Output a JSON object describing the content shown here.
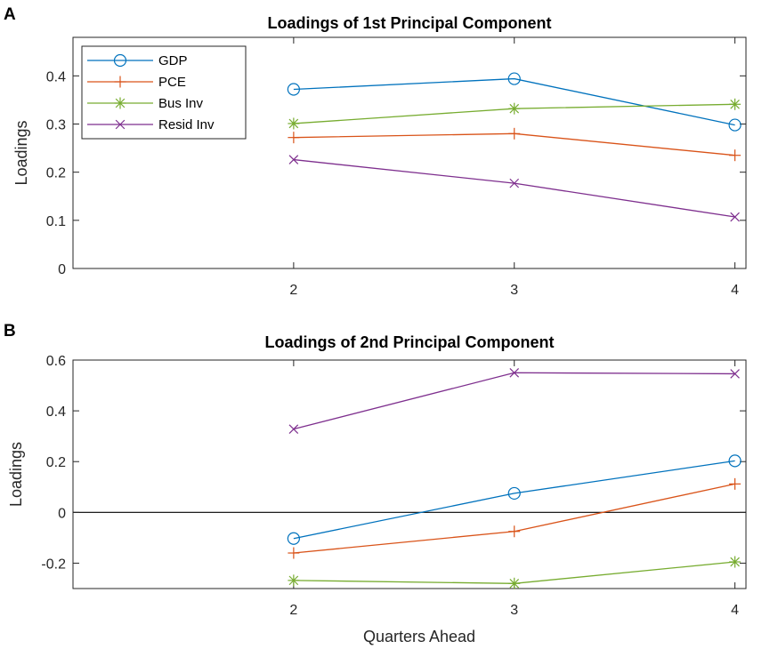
{
  "figure": {
    "xlabel": "Quarters Ahead",
    "colors": {
      "GDP": "#0072BD",
      "PCE": "#D95319",
      "Bus Inv": "#77AC30",
      "Resid Inv": "#7E2F8E"
    },
    "markers": {
      "GDP": "circle",
      "PCE": "plus",
      "Bus Inv": "asterisk",
      "Resid Inv": "cross"
    }
  },
  "chart_data": [
    {
      "panel_label": "A",
      "type": "line",
      "title": "Loadings of 1st Principal Component",
      "xlabel": "",
      "ylabel": "Loadings",
      "x": [
        2,
        3,
        4
      ],
      "xlim": [
        1,
        4.05
      ],
      "ylim": [
        0,
        0.48
      ],
      "xticks": [
        2,
        3,
        4
      ],
      "yticks": [
        0,
        0.1,
        0.2,
        0.3,
        0.4
      ],
      "ytick_labels": [
        "0",
        "0.1",
        "0.2",
        "0.3",
        "0.4"
      ],
      "zero_line": false,
      "legend": {
        "position": "top-left",
        "entries": [
          "GDP",
          "PCE",
          "Bus Inv",
          "Resid Inv"
        ]
      },
      "series": [
        {
          "name": "GDP",
          "values": [
            0.372,
            0.394,
            0.298
          ]
        },
        {
          "name": "PCE",
          "values": [
            0.272,
            0.28,
            0.235
          ]
        },
        {
          "name": "Bus Inv",
          "values": [
            0.301,
            0.332,
            0.341
          ]
        },
        {
          "name": "Resid Inv",
          "values": [
            0.226,
            0.177,
            0.107
          ]
        }
      ]
    },
    {
      "panel_label": "B",
      "type": "line",
      "title": "Loadings of 2nd Principal Component",
      "xlabel": "Quarters Ahead",
      "ylabel": "Loadings",
      "x": [
        2,
        3,
        4
      ],
      "xlim": [
        1,
        4.05
      ],
      "ylim": [
        -0.3,
        0.6
      ],
      "xticks": [
        2,
        3,
        4
      ],
      "yticks": [
        -0.2,
        0,
        0.2,
        0.4,
        0.6
      ],
      "ytick_labels": [
        "-0.2",
        "0",
        "0.2",
        "0.4",
        "0.6"
      ],
      "zero_line": true,
      "series": [
        {
          "name": "GDP",
          "values": [
            -0.103,
            0.075,
            0.203
          ]
        },
        {
          "name": "PCE",
          "values": [
            -0.16,
            -0.075,
            0.112
          ]
        },
        {
          "name": "Bus Inv",
          "values": [
            -0.268,
            -0.28,
            -0.195
          ]
        },
        {
          "name": "Resid Inv",
          "values": [
            0.328,
            0.55,
            0.546
          ]
        }
      ]
    }
  ]
}
